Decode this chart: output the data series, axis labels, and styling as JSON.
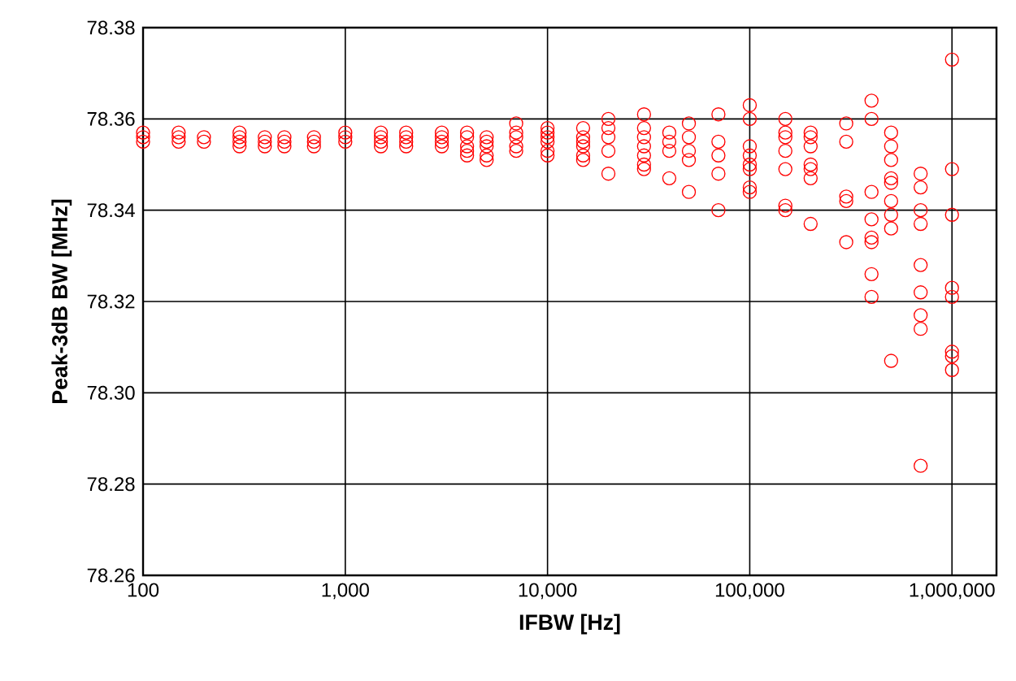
{
  "chart_data": {
    "type": "scatter",
    "xlabel": "IFBW [Hz]",
    "ylabel": "Peak-3dB BW [MHz]",
    "log": "x",
    "grid": true,
    "marker": "circle",
    "xlim": [
      100,
      1660000
    ],
    "xticks": [
      100,
      {
        "value": 1000,
        "label": "1,000"
      },
      {
        "value": 10000,
        "label": "10,000"
      },
      {
        "value": 100000,
        "label": "100,000"
      },
      {
        "value": 1000000,
        "label": "1,000,000"
      }
    ],
    "ylim": [
      78.26,
      78.38
    ],
    "yticks": [
      78.26,
      78.28,
      {
        "value": 78.3,
        "label": "78.30"
      },
      78.32,
      78.34,
      78.36,
      78.38
    ],
    "series": [
      {
        "color": "#ff0000",
        "x": [
          100,
          100,
          100,
          150,
          150,
          150,
          200,
          200,
          300,
          300,
          300,
          300,
          400,
          400,
          400,
          500,
          500,
          500,
          700,
          700,
          700,
          1000,
          1000,
          1000,
          1500,
          1500,
          1500,
          1500,
          2000,
          2000,
          2000,
          2000,
          3000,
          3000,
          3000,
          3000,
          4000,
          4000,
          4000,
          4000,
          4000,
          5000,
          5000,
          5000,
          5000,
          5000,
          7000,
          7000,
          7000,
          7000,
          7000,
          10000,
          10000,
          10000,
          10000,
          10000,
          10000,
          15000,
          15000,
          15000,
          15000,
          15000,
          15000,
          20000,
          20000,
          20000,
          20000,
          20000,
          30000,
          30000,
          30000,
          30000,
          30000,
          30000,
          30000,
          40000,
          40000,
          40000,
          40000,
          50000,
          50000,
          50000,
          50000,
          50000,
          70000,
          70000,
          70000,
          70000,
          70000,
          100000,
          100000,
          100000,
          100000,
          100000,
          100000,
          100000,
          100000,
          150000,
          150000,
          150000,
          150000,
          150000,
          150000,
          150000,
          200000,
          200000,
          200000,
          200000,
          200000,
          200000,
          200000,
          300000,
          300000,
          300000,
          300000,
          300000,
          400000,
          400000,
          400000,
          400000,
          400000,
          400000,
          400000,
          400000,
          500000,
          500000,
          500000,
          500000,
          500000,
          500000,
          500000,
          500000,
          500000,
          700000,
          700000,
          700000,
          700000,
          700000,
          700000,
          700000,
          700000,
          700000,
          1000000,
          1000000,
          1000000,
          1000000,
          1000000,
          1000000,
          1000000,
          1000000
        ],
        "values": [
          78.357,
          78.356,
          78.355,
          78.357,
          78.356,
          78.355,
          78.356,
          78.355,
          78.357,
          78.356,
          78.355,
          78.354,
          78.356,
          78.355,
          78.354,
          78.356,
          78.355,
          78.354,
          78.356,
          78.355,
          78.354,
          78.357,
          78.356,
          78.355,
          78.357,
          78.356,
          78.355,
          78.354,
          78.357,
          78.356,
          78.355,
          78.354,
          78.357,
          78.356,
          78.355,
          78.354,
          78.357,
          78.356,
          78.354,
          78.353,
          78.352,
          78.356,
          78.355,
          78.354,
          78.352,
          78.351,
          78.359,
          78.357,
          78.356,
          78.354,
          78.353,
          78.358,
          78.357,
          78.356,
          78.355,
          78.353,
          78.352,
          78.358,
          78.356,
          78.355,
          78.354,
          78.352,
          78.351,
          78.36,
          78.358,
          78.356,
          78.353,
          78.348,
          78.361,
          78.358,
          78.356,
          78.354,
          78.352,
          78.35,
          78.349,
          78.357,
          78.355,
          78.353,
          78.347,
          78.359,
          78.356,
          78.353,
          78.351,
          78.344,
          78.361,
          78.355,
          78.352,
          78.348,
          78.34,
          78.363,
          78.36,
          78.354,
          78.352,
          78.35,
          78.349,
          78.345,
          78.344,
          78.36,
          78.357,
          78.356,
          78.353,
          78.349,
          78.341,
          78.34,
          78.357,
          78.356,
          78.354,
          78.35,
          78.349,
          78.347,
          78.337,
          78.359,
          78.355,
          78.343,
          78.342,
          78.333,
          78.364,
          78.36,
          78.344,
          78.338,
          78.334,
          78.333,
          78.326,
          78.321,
          78.357,
          78.354,
          78.351,
          78.347,
          78.346,
          78.342,
          78.339,
          78.336,
          78.307,
          78.348,
          78.345,
          78.34,
          78.337,
          78.328,
          78.322,
          78.317,
          78.314,
          78.284,
          78.373,
          78.349,
          78.339,
          78.323,
          78.321,
          78.309,
          78.308,
          78.305
        ]
      }
    ]
  }
}
